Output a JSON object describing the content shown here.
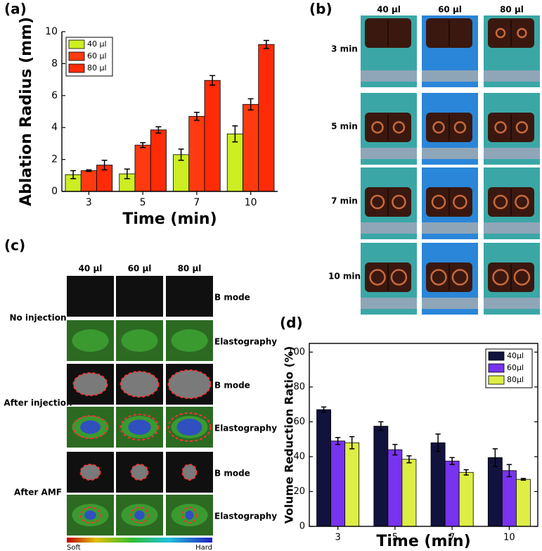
{
  "chart_data": [
    {
      "type": "bar",
      "panel_label": "(a)",
      "xlabel": "Time (min)",
      "ylabel": "Ablation Radius (mm)",
      "categories": [
        "3",
        "5",
        "7",
        "10"
      ],
      "series": [
        {
          "name": "40 μl",
          "color": "#ccee22",
          "values": [
            1.05,
            1.1,
            2.3,
            3.6
          ],
          "errors": [
            0.25,
            0.3,
            0.35,
            0.5
          ]
        },
        {
          "name": "60 μl",
          "color": "#ff3a10",
          "values": [
            1.3,
            2.9,
            4.7,
            5.45
          ],
          "errors": [
            0.05,
            0.15,
            0.25,
            0.35
          ]
        },
        {
          "name": "80 μl",
          "color": "#ff2a08",
          "values": [
            1.65,
            3.85,
            6.95,
            9.2
          ],
          "errors": [
            0.3,
            0.2,
            0.3,
            0.25
          ]
        }
      ],
      "ylim": [
        0,
        10
      ],
      "yticks": [
        0,
        2,
        4,
        6,
        8,
        10
      ],
      "legend": "upper left"
    },
    {
      "type": "bar",
      "panel_label": "(d)",
      "xlabel": "Time (min)",
      "ylabel": "Volume Reduction Ratio (%)",
      "categories": [
        "3",
        "5",
        "7",
        "10"
      ],
      "series": [
        {
          "name": "40μl",
          "color": "#12123e",
          "values": [
            67,
            57.5,
            48,
            39.5
          ],
          "errors": [
            1.5,
            2.5,
            5,
            5
          ]
        },
        {
          "name": "60μl",
          "color": "#7733ee",
          "values": [
            49,
            44,
            37.5,
            32
          ],
          "errors": [
            2,
            3,
            2,
            3.5
          ]
        },
        {
          "name": "80μl",
          "color": "#ddee44",
          "values": [
            48,
            38.5,
            31,
            27
          ],
          "errors": [
            3.5,
            2,
            1.5,
            0.5
          ]
        }
      ],
      "ylim": [
        0,
        105
      ],
      "yticks": [
        0,
        20,
        40,
        60,
        80,
        100
      ],
      "legend": "upper right"
    }
  ],
  "panel_b": {
    "label": "(b)",
    "columns": [
      "40 μl",
      "60 μl",
      "80 μl"
    ],
    "rows": [
      "3 min",
      "5 min",
      "7 min",
      "10 min"
    ]
  },
  "panel_c": {
    "label": "(c)",
    "columns": [
      "40 μl",
      "60 μl",
      "80 μl"
    ],
    "groups": [
      {
        "label": "No injection",
        "rows": [
          "B mode",
          "Elastography"
        ]
      },
      {
        "label": "After injection",
        "rows": [
          "B mode",
          "Elastography"
        ]
      },
      {
        "label": "After AMF",
        "rows": [
          "B mode",
          "Elastography"
        ]
      }
    ],
    "colorbar": {
      "min_label": "Soft",
      "max_label": "Hard"
    }
  }
}
